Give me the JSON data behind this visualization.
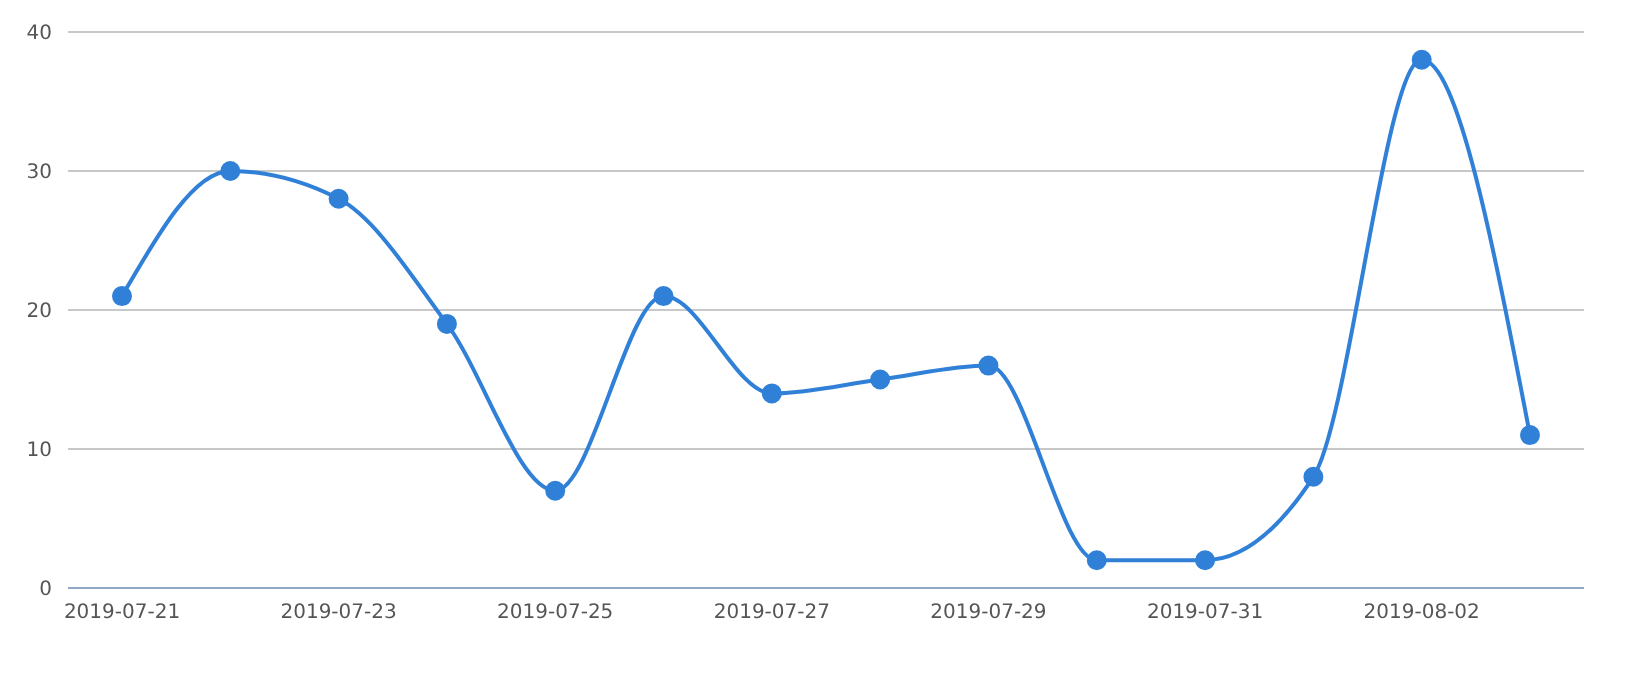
{
  "chart_data": {
    "type": "line",
    "categories": [
      "2019-07-21",
      null,
      "2019-07-23",
      null,
      "2019-07-25",
      null,
      "2019-07-27",
      null,
      "2019-07-29",
      null,
      "2019-07-31",
      null,
      "2019-08-02",
      null
    ],
    "values": [
      21,
      30,
      28,
      19,
      7,
      21,
      14,
      15,
      16,
      2,
      2,
      8,
      38,
      11
    ],
    "color": "#3080d8",
    "ylim": [
      0,
      40
    ],
    "yticks": [
      0,
      10,
      20,
      30,
      40
    ],
    "grid": "y",
    "marker": "circle"
  }
}
